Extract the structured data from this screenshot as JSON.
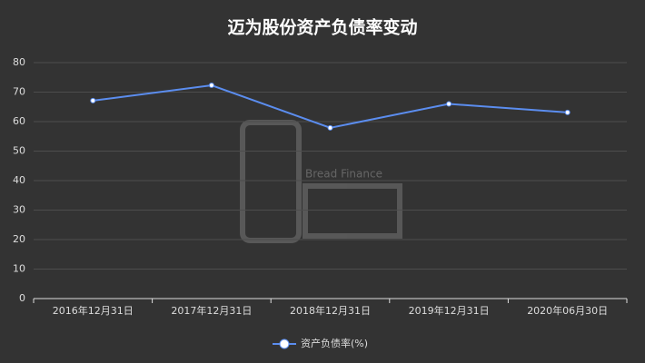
{
  "chart_data": {
    "type": "line",
    "title": "迈为股份资产负债率变动",
    "categories": [
      "2016年12月31日",
      "2017年12月31日",
      "2018年12月31日",
      "2019年12月31日",
      "2020年06月30日"
    ],
    "series": [
      {
        "name": "资产负债率(%)",
        "color": "#5b8def",
        "values": [
          67.1,
          72.3,
          57.9,
          66.0,
          63.1
        ]
      }
    ],
    "ylim": [
      0,
      80
    ],
    "yticks": [
      0,
      10,
      20,
      30,
      40,
      50,
      60,
      70,
      80
    ],
    "grid": true,
    "legend": "bottom",
    "watermark": "Bread Finance"
  }
}
